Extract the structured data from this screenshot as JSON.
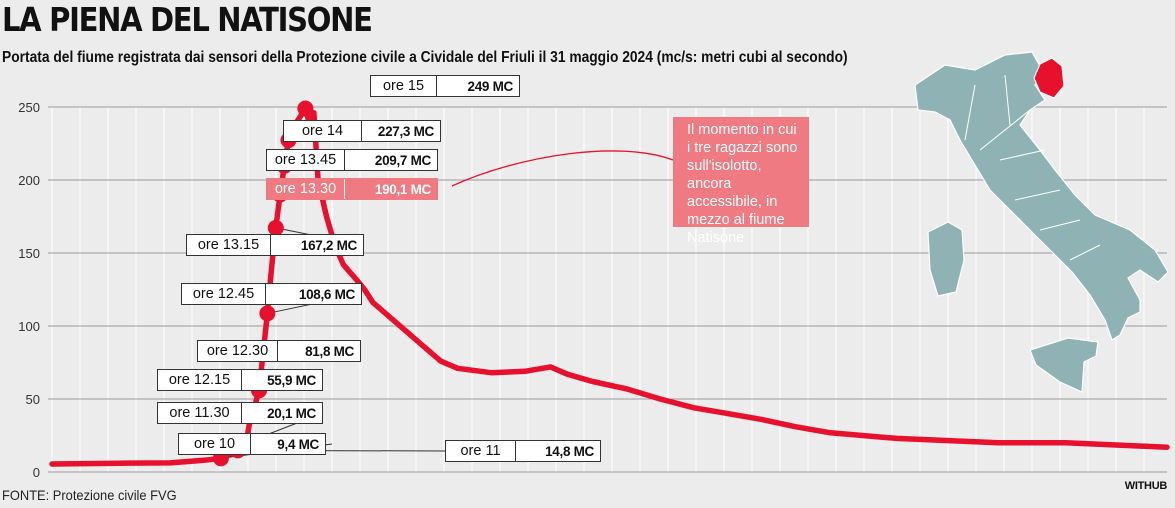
{
  "title": "LA PIENA DEL NATISONE",
  "subtitle": "Portata del fiume registrata dai sensori della Protezione civile a Cividale del Friuli il 31 maggio 2024 (mc/s: metri cubi al secondo)",
  "source": "FONTE: Protezione civile FVG",
  "credit": "WITHUB",
  "annotation": "Il momento in cui i tre ragazzi sono sull'isolotto, ancora accessibile, in mezzo al fiume Natisone",
  "colors": {
    "line": "#e8112d",
    "highlight": "#f07a82",
    "map": "#8fb3b4",
    "map_region": "#e8112d",
    "background": "#ececec",
    "grid": "#ffffff"
  },
  "labels": [
    {
      "time": "ore 15",
      "value": "249 MC"
    },
    {
      "time": "ore 14",
      "value": "227,3 MC"
    },
    {
      "time": "ore 13.45",
      "value": "209,7 MC"
    },
    {
      "time": "ore 13.30",
      "value": "190,1 MC",
      "highlight": true
    },
    {
      "time": "ore 13.15",
      "value": "167,2 MC"
    },
    {
      "time": "ore 12.45",
      "value": "108,6 MC"
    },
    {
      "time": "ore 12.30",
      "value": "81,8 MC"
    },
    {
      "time": "ore 12.15",
      "value": "55,9 MC"
    },
    {
      "time": "ore 11.30",
      "value": "20,1 MC"
    },
    {
      "time": "ore 10",
      "value": "9,4 MC"
    },
    {
      "time": "ore 11",
      "value": "14,8 MC"
    }
  ],
  "chart_data": {
    "type": "line",
    "title": "LA PIENA DEL NATISONE",
    "xlabel": "",
    "ylabel": "",
    "ylim": [
      0,
      250
    ],
    "yticks": [
      0,
      50,
      100,
      150,
      200,
      250
    ],
    "grid": true,
    "x_unit": "hour of day (31 May 2024), no axis labels shown",
    "series": [
      {
        "values": [
          [
            0.0,
            5.5
          ],
          [
            4.0,
            6.0
          ],
          [
            7.0,
            6.2
          ],
          [
            9.0,
            8.0
          ],
          [
            10.0,
            9.4
          ],
          [
            10.5,
            12
          ],
          [
            11.0,
            14.8
          ],
          [
            11.25,
            18
          ],
          [
            11.5,
            20.1
          ],
          [
            11.75,
            38
          ],
          [
            12.0,
            45
          ],
          [
            12.25,
            55.9
          ],
          [
            12.5,
            81.8
          ],
          [
            12.75,
            108.6
          ],
          [
            13.0,
            140
          ],
          [
            13.25,
            167.2
          ],
          [
            13.5,
            190.1
          ],
          [
            13.75,
            209.7
          ],
          [
            14.0,
            227.3
          ],
          [
            14.5,
            240
          ],
          [
            15.0,
            249
          ],
          [
            15.25,
            238
          ],
          [
            15.5,
            246
          ],
          [
            15.75,
            200
          ],
          [
            16.25,
            175
          ],
          [
            16.75,
            155
          ],
          [
            17.25,
            142
          ],
          [
            18.0,
            132
          ],
          [
            18.5,
            125
          ],
          [
            19.0,
            116
          ],
          [
            20.0,
            106
          ],
          [
            21.0,
            96
          ],
          [
            22.0,
            86
          ],
          [
            23.0,
            76
          ],
          [
            24.0,
            71
          ],
          [
            26.0,
            68
          ],
          [
            28.0,
            69
          ],
          [
            29.5,
            72
          ],
          [
            30.5,
            67
          ],
          [
            32.0,
            62
          ],
          [
            34.0,
            57
          ],
          [
            36.0,
            50
          ],
          [
            38.0,
            44
          ],
          [
            40.0,
            40
          ],
          [
            42.0,
            36
          ],
          [
            44.0,
            31
          ],
          [
            46.0,
            27
          ],
          [
            50.0,
            23
          ],
          [
            56.0,
            20
          ],
          [
            60.0,
            20
          ],
          [
            66.0,
            17
          ]
        ]
      }
    ],
    "markers": [
      {
        "label": "ore 10",
        "x": 10.0,
        "y": 9.4
      },
      {
        "label": "ore 11",
        "x": 11.0,
        "y": 14.8
      },
      {
        "label": "ore 11.30",
        "x": 11.5,
        "y": 20.1
      },
      {
        "label": "ore 12.15",
        "x": 12.25,
        "y": 55.9
      },
      {
        "label": "ore 12.30",
        "x": 12.5,
        "y": 81.8
      },
      {
        "label": "ore 12.45",
        "x": 12.75,
        "y": 108.6
      },
      {
        "label": "ore 13.15",
        "x": 13.25,
        "y": 167.2
      },
      {
        "label": "ore 13.30",
        "x": 13.5,
        "y": 190.1
      },
      {
        "label": "ore 13.45",
        "x": 13.75,
        "y": 209.7
      },
      {
        "label": "ore 14",
        "x": 14.0,
        "y": 227.3
      },
      {
        "label": "ore 15",
        "x": 15.0,
        "y": 249
      }
    ]
  }
}
